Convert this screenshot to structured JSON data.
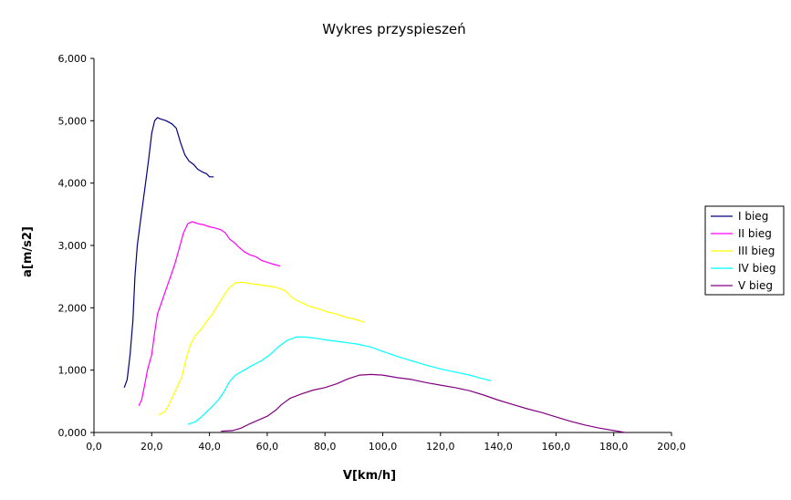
{
  "chart_data": {
    "type": "line",
    "title": "Wykres przyspieszeń",
    "xlabel": "V[km/h]",
    "ylabel": "a[m/s2]",
    "xlim": [
      0,
      200
    ],
    "ylim": [
      0,
      6
    ],
    "xticks": [
      0,
      20,
      40,
      60,
      80,
      100,
      120,
      140,
      160,
      180,
      200
    ],
    "yticks": [
      0,
      1,
      2,
      3,
      4,
      5,
      6
    ],
    "xtick_labels": [
      "0,0",
      "20,0",
      "40,0",
      "60,0",
      "80,0",
      "100,0",
      "120,0",
      "140,0",
      "160,0",
      "180,0",
      "200,0"
    ],
    "ytick_labels": [
      "0,000",
      "1,000",
      "2,000",
      "3,000",
      "4,000",
      "5,000",
      "6,000"
    ],
    "grid": false,
    "legend_position": "right",
    "series": [
      {
        "name": "I bieg",
        "color": "#000080",
        "points": [
          [
            10.5,
            0.72
          ],
          [
            11.5,
            0.85
          ],
          [
            12.5,
            1.25
          ],
          [
            13.5,
            1.8
          ],
          [
            14.2,
            2.5
          ],
          [
            15.0,
            3.0
          ],
          [
            16.0,
            3.35
          ],
          [
            17.0,
            3.7
          ],
          [
            18.0,
            4.05
          ],
          [
            19.0,
            4.4
          ],
          [
            20.0,
            4.8
          ],
          [
            21.0,
            5.0
          ],
          [
            22.0,
            5.05
          ],
          [
            23.0,
            5.03
          ],
          [
            25.0,
            5.0
          ],
          [
            27.0,
            4.95
          ],
          [
            28.5,
            4.88
          ],
          [
            30.0,
            4.65
          ],
          [
            31.5,
            4.45
          ],
          [
            33.0,
            4.35
          ],
          [
            34.5,
            4.3
          ],
          [
            36.0,
            4.22
          ],
          [
            37.5,
            4.18
          ],
          [
            39.0,
            4.15
          ],
          [
            40.0,
            4.1
          ],
          [
            41.5,
            4.1
          ]
        ]
      },
      {
        "name": "II bieg",
        "color": "#ff00ff",
        "points": [
          [
            15.5,
            0.43
          ],
          [
            16.5,
            0.52
          ],
          [
            17.5,
            0.75
          ],
          [
            18.5,
            1.0
          ],
          [
            20.0,
            1.25
          ],
          [
            21.0,
            1.6
          ],
          [
            22.0,
            1.9
          ],
          [
            23.5,
            2.1
          ],
          [
            25.0,
            2.3
          ],
          [
            26.5,
            2.5
          ],
          [
            28.0,
            2.7
          ],
          [
            29.5,
            2.95
          ],
          [
            31.0,
            3.2
          ],
          [
            32.5,
            3.35
          ],
          [
            34.0,
            3.38
          ],
          [
            36.0,
            3.35
          ],
          [
            38.0,
            3.33
          ],
          [
            40.0,
            3.3
          ],
          [
            42.0,
            3.28
          ],
          [
            44.0,
            3.25
          ],
          [
            45.5,
            3.2
          ],
          [
            47.0,
            3.1
          ],
          [
            48.5,
            3.05
          ],
          [
            50.0,
            2.98
          ],
          [
            52.0,
            2.9
          ],
          [
            54.0,
            2.85
          ],
          [
            56.0,
            2.82
          ],
          [
            58.0,
            2.76
          ],
          [
            60.0,
            2.73
          ],
          [
            62.0,
            2.7
          ],
          [
            64.5,
            2.67
          ]
        ]
      },
      {
        "name": "III bieg",
        "color": "#ffff00",
        "points": [
          [
            22.5,
            0.28
          ],
          [
            24.5,
            0.33
          ],
          [
            26.0,
            0.45
          ],
          [
            27.5,
            0.6
          ],
          [
            29.0,
            0.75
          ],
          [
            30.5,
            0.9
          ],
          [
            32.0,
            1.2
          ],
          [
            33.5,
            1.42
          ],
          [
            35.0,
            1.55
          ],
          [
            37.0,
            1.65
          ],
          [
            39.0,
            1.78
          ],
          [
            41.0,
            1.9
          ],
          [
            43.0,
            2.05
          ],
          [
            45.0,
            2.2
          ],
          [
            47.0,
            2.33
          ],
          [
            49.0,
            2.4
          ],
          [
            51.0,
            2.41
          ],
          [
            54.0,
            2.39
          ],
          [
            57.0,
            2.37
          ],
          [
            60.0,
            2.35
          ],
          [
            63.0,
            2.33
          ],
          [
            66.0,
            2.28
          ],
          [
            69.0,
            2.15
          ],
          [
            72.0,
            2.08
          ],
          [
            75.0,
            2.02
          ],
          [
            78.0,
            1.98
          ],
          [
            81.0,
            1.93
          ],
          [
            84.0,
            1.9
          ],
          [
            87.0,
            1.85
          ],
          [
            90.0,
            1.82
          ],
          [
            93.5,
            1.77
          ]
        ]
      },
      {
        "name": "IV bieg",
        "color": "#00ffff",
        "points": [
          [
            32.5,
            0.13
          ],
          [
            35.0,
            0.17
          ],
          [
            37.0,
            0.24
          ],
          [
            39.0,
            0.33
          ],
          [
            41.0,
            0.42
          ],
          [
            43.0,
            0.52
          ],
          [
            45.0,
            0.65
          ],
          [
            47.0,
            0.82
          ],
          [
            49.0,
            0.92
          ],
          [
            52.0,
            1.0
          ],
          [
            55.0,
            1.08
          ],
          [
            58.0,
            1.15
          ],
          [
            61.0,
            1.25
          ],
          [
            64.0,
            1.38
          ],
          [
            67.0,
            1.48
          ],
          [
            70.0,
            1.53
          ],
          [
            73.0,
            1.53
          ],
          [
            77.0,
            1.51
          ],
          [
            81.0,
            1.48
          ],
          [
            86.0,
            1.45
          ],
          [
            91.0,
            1.42
          ],
          [
            96.0,
            1.37
          ],
          [
            100.0,
            1.3
          ],
          [
            105.0,
            1.22
          ],
          [
            110.0,
            1.15
          ],
          [
            115.0,
            1.08
          ],
          [
            120.0,
            1.02
          ],
          [
            125.0,
            0.97
          ],
          [
            130.0,
            0.92
          ],
          [
            134.0,
            0.87
          ],
          [
            137.5,
            0.83
          ]
        ]
      },
      {
        "name": "V bieg",
        "color": "#800080",
        "points": [
          [
            44.0,
            0.02
          ],
          [
            48.0,
            0.03
          ],
          [
            51.0,
            0.07
          ],
          [
            54.0,
            0.14
          ],
          [
            57.0,
            0.2
          ],
          [
            60.0,
            0.26
          ],
          [
            63.0,
            0.36
          ],
          [
            65.0,
            0.45
          ],
          [
            68.0,
            0.55
          ],
          [
            72.0,
            0.62
          ],
          [
            76.0,
            0.68
          ],
          [
            80.0,
            0.72
          ],
          [
            84.0,
            0.78
          ],
          [
            88.0,
            0.86
          ],
          [
            92.0,
            0.92
          ],
          [
            96.0,
            0.93
          ],
          [
            100.0,
            0.92
          ],
          [
            105.0,
            0.88
          ],
          [
            110.0,
            0.85
          ],
          [
            115.0,
            0.8
          ],
          [
            120.0,
            0.76
          ],
          [
            125.0,
            0.72
          ],
          [
            130.0,
            0.67
          ],
          [
            135.0,
            0.6
          ],
          [
            140.0,
            0.52
          ],
          [
            145.0,
            0.45
          ],
          [
            150.0,
            0.38
          ],
          [
            155.0,
            0.32
          ],
          [
            160.0,
            0.25
          ],
          [
            165.0,
            0.18
          ],
          [
            170.0,
            0.12
          ],
          [
            175.0,
            0.07
          ],
          [
            180.0,
            0.03
          ],
          [
            184.0,
            0.0
          ]
        ]
      }
    ]
  }
}
